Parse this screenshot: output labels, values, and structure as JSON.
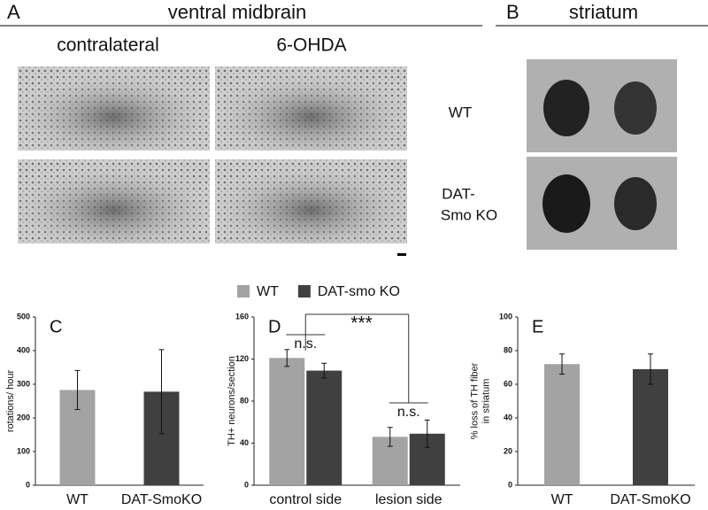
{
  "panels": {
    "A": {
      "label": "A",
      "title": "ventral midbrain",
      "columns": [
        "contralateral",
        "6-OHDA"
      ],
      "rows": [
        [
          "WT"
        ],
        [
          "DAT-",
          "Smo KO"
        ]
      ]
    },
    "B": {
      "label": "B",
      "title": "striatum"
    }
  },
  "chart_data": [
    {
      "type": "bar",
      "panel_label": "C",
      "ylabel": [
        "rotations/ hour"
      ],
      "categories": [
        "WT",
        "DAT-SmoKO"
      ],
      "values": [
        283,
        278
      ],
      "errors": [
        58,
        125
      ],
      "colors": [
        "#a3a3a3",
        "#404040"
      ],
      "ylim": [
        0,
        500
      ],
      "yticks": [
        0,
        100,
        200,
        300,
        400,
        500
      ]
    },
    {
      "type": "bar",
      "panel_label": "D",
      "ylabel": [
        "TH+ neurons/section"
      ],
      "categories": [
        "control side",
        "lesion side"
      ],
      "series": [
        {
          "name": "WT",
          "color": "#a3a3a3",
          "values": [
            121,
            46
          ],
          "errors": [
            8,
            9
          ]
        },
        {
          "name": "DAT-smo KO",
          "color": "#404040",
          "values": [
            109,
            49
          ],
          "errors": [
            7,
            13
          ]
        }
      ],
      "annotations": [
        "n.s.",
        "***",
        "n.s."
      ],
      "ylim": [
        0,
        160
      ],
      "yticks": [
        0,
        40,
        80,
        120,
        160
      ]
    },
    {
      "type": "bar",
      "panel_label": "E",
      "ylabel": [
        "% loss of TH fiber",
        "in striatum"
      ],
      "categories": [
        "WT",
        "DAT-SmoKO"
      ],
      "values": [
        72,
        69
      ],
      "errors": [
        6,
        9
      ],
      "colors": [
        "#a3a3a3",
        "#404040"
      ],
      "ylim": [
        0,
        100
      ],
      "yticks": [
        0,
        20,
        40,
        60,
        80,
        100
      ]
    }
  ]
}
